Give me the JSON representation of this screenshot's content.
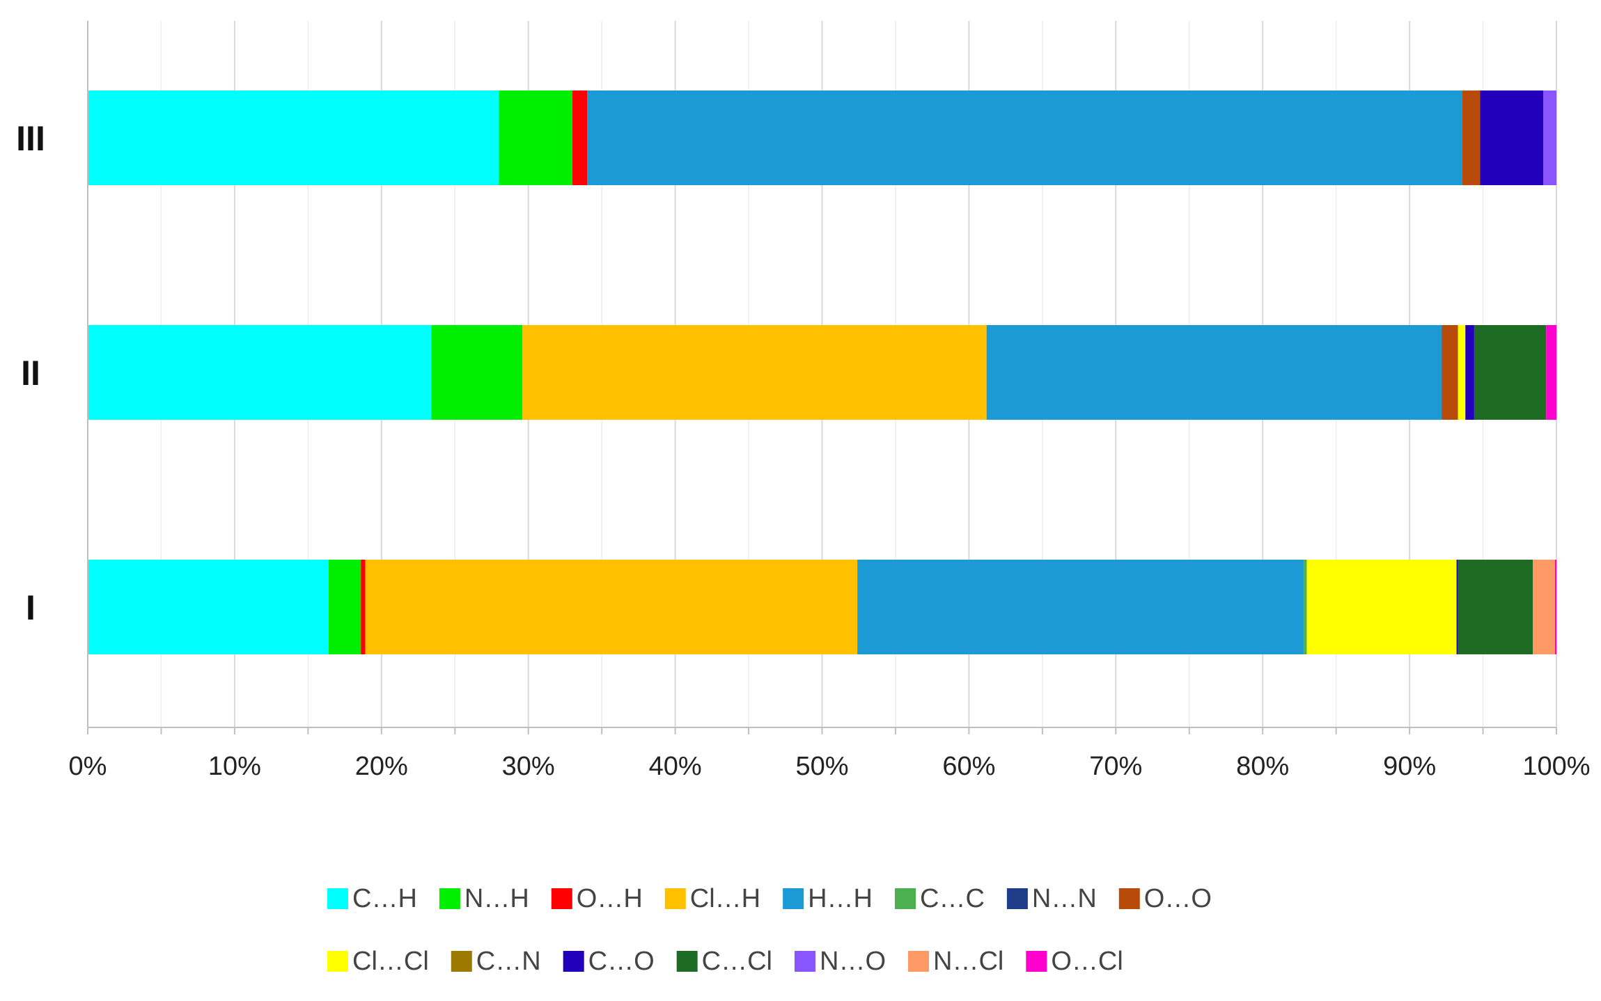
{
  "chart_data": {
    "type": "bar",
    "orientation": "horizontal",
    "stacked": true,
    "normalized_percent": true,
    "categories": [
      "III",
      "II",
      "I"
    ],
    "xlim": [
      0,
      100
    ],
    "x_tick_labels": [
      "0%",
      "10%",
      "20%",
      "30%",
      "40%",
      "50%",
      "60%",
      "70%",
      "80%",
      "90%",
      "100%"
    ],
    "grid": "vertical",
    "legend_position": "bottom",
    "series": [
      {
        "name": "C…H",
        "color": "#00FFFF",
        "values": [
          28.0,
          23.4,
          16.4
        ]
      },
      {
        "name": "N…H",
        "color": "#00EE00",
        "values": [
          5.0,
          6.2,
          2.2
        ]
      },
      {
        "name": "O…H",
        "color": "#FF0000",
        "values": [
          1.0,
          0.0,
          0.3
        ]
      },
      {
        "name": "Cl…H",
        "color": "#FFC000",
        "values": [
          0.0,
          31.6,
          33.5
        ]
      },
      {
        "name": "H…H",
        "color": "#1B9AD6",
        "values": [
          59.6,
          31.0,
          30.4
        ]
      },
      {
        "name": "C…C",
        "color": "#4CAF50",
        "values": [
          0.0,
          0.0,
          0.2
        ]
      },
      {
        "name": "N…N",
        "color": "#1F3C88",
        "values": [
          0.0,
          0.0,
          0.0
        ]
      },
      {
        "name": "O…O",
        "color": "#B84A0A",
        "values": [
          1.2,
          1.1,
          0.0
        ]
      },
      {
        "name": "Cl…Cl",
        "color": "#FFFF00",
        "values": [
          0.0,
          0.5,
          10.2
        ]
      },
      {
        "name": "C…N",
        "color": "#9C7A00",
        "values": [
          0.0,
          0.0,
          0.0
        ]
      },
      {
        "name": "C…O",
        "color": "#2200BB",
        "values": [
          4.3,
          0.6,
          0.1
        ]
      },
      {
        "name": "C…Cl",
        "color": "#1E6B23",
        "values": [
          0.0,
          4.9,
          5.1
        ]
      },
      {
        "name": "N…O",
        "color": "#8855FF",
        "values": [
          0.9,
          0.0,
          0.0
        ]
      },
      {
        "name": "N…Cl",
        "color": "#FF9966",
        "values": [
          0.0,
          0.0,
          1.5
        ]
      },
      {
        "name": "O…Cl",
        "color": "#FF00CC",
        "values": [
          0.0,
          0.7,
          0.1
        ]
      }
    ]
  }
}
